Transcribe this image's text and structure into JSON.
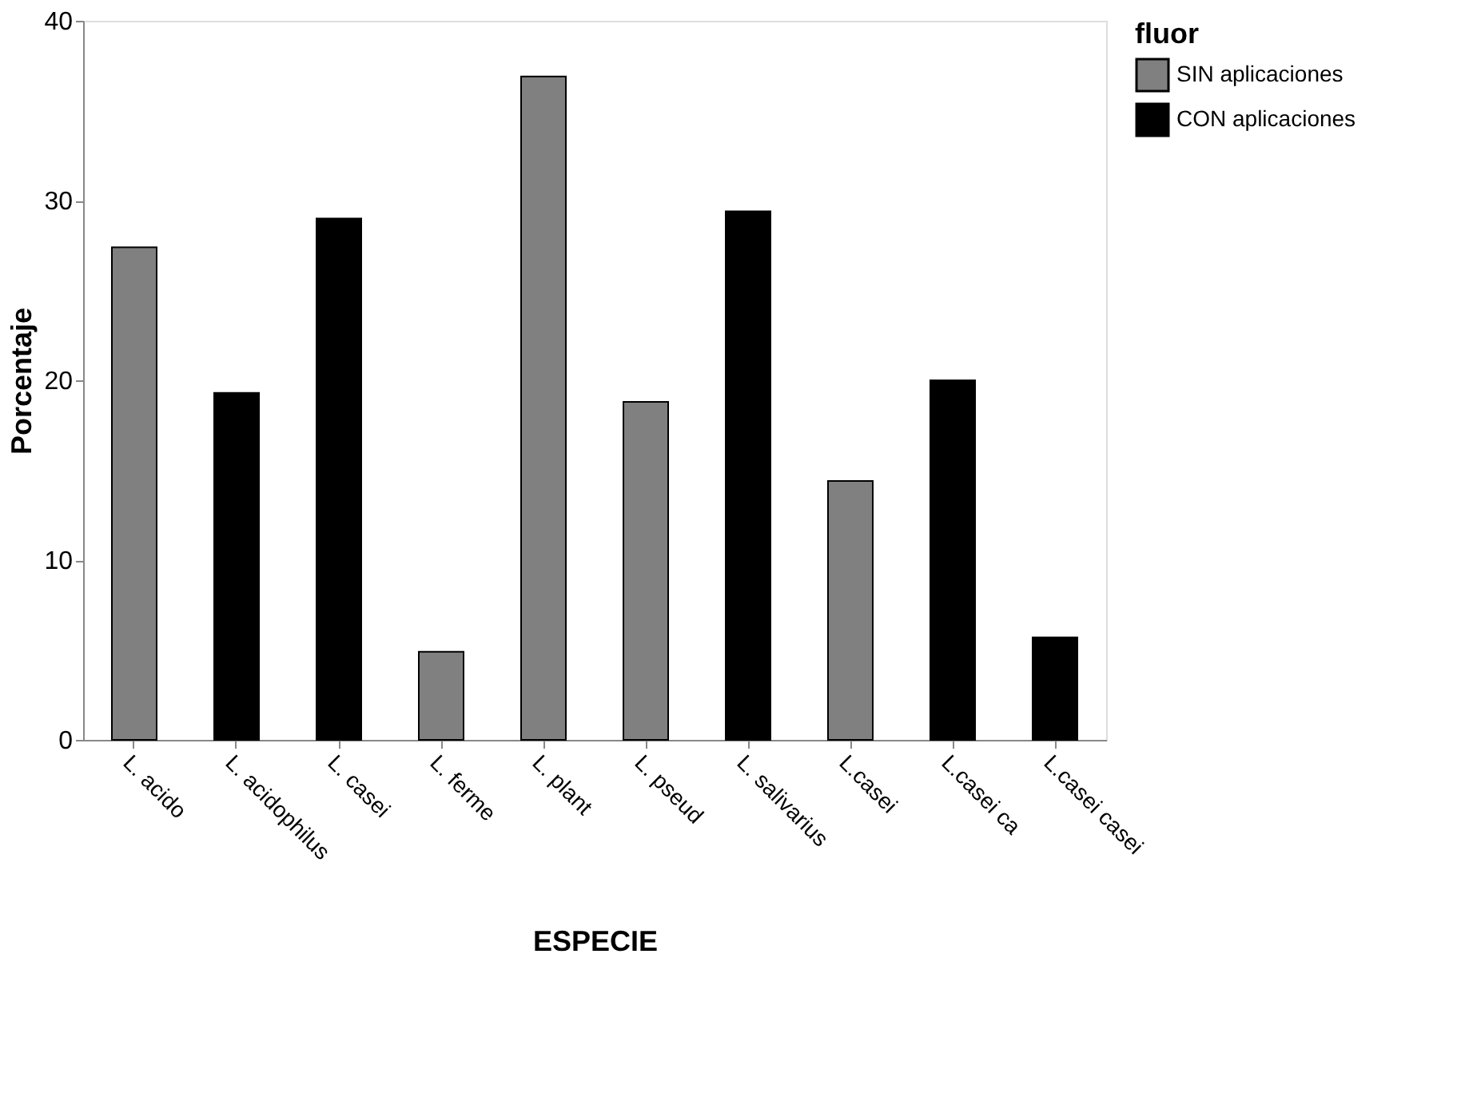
{
  "chart_data": {
    "type": "bar",
    "xlabel": "ESPECIE",
    "ylabel": "Porcentaje",
    "legend_title": "fluor",
    "categories": [
      "L. acido",
      "L. acidophilus",
      "L. casei",
      "L. ferme",
      "L. plant",
      "L. pseud",
      "L. salivarius",
      "L.casei",
      "L.casei ca",
      "L.casei casei"
    ],
    "series": [
      {
        "name": "SIN aplicaciones",
        "color": "#808080",
        "values": [
          27.4,
          null,
          null,
          4.9,
          36.9,
          18.8,
          null,
          14.4,
          null,
          null
        ]
      },
      {
        "name": "CON aplicaciones",
        "color": "#000000",
        "values": [
          null,
          19.3,
          29.0,
          null,
          null,
          null,
          29.4,
          null,
          20.0,
          5.7
        ]
      }
    ],
    "ylim": [
      0,
      40
    ],
    "yticks": [
      0,
      10,
      20,
      30,
      40
    ],
    "grid": false,
    "legend": "right"
  }
}
